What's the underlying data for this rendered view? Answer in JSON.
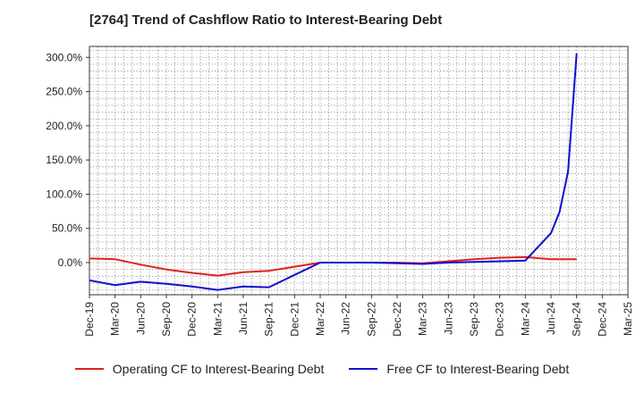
{
  "chart_data": {
    "type": "line",
    "title": "[2764]  Trend of Cashflow Ratio to Interest-Bearing Debt",
    "xlabel": "",
    "ylabel": "",
    "x_ticks": [
      "Dec-19",
      "Mar-20",
      "Jun-20",
      "Sep-20",
      "Dec-20",
      "Mar-21",
      "Jun-21",
      "Sep-21",
      "Dec-21",
      "Mar-22",
      "Jun-22",
      "Sep-22",
      "Dec-22",
      "Mar-23",
      "Jun-23",
      "Sep-23",
      "Dec-23",
      "Mar-24",
      "Jun-24",
      "Sep-24",
      "Dec-24",
      "Mar-25"
    ],
    "y_ticks": [
      "300.0%",
      "250.0%",
      "200.0%",
      "150.0%",
      "100.0%",
      "50.0%",
      "0.0%"
    ],
    "ylim": [
      -47,
      316
    ],
    "grid": true,
    "legend_position": "bottom",
    "series": [
      {
        "name": "Operating CF to Interest-Bearing Debt",
        "color": "#e02020",
        "x": [
          "Dec-19",
          "Mar-20",
          "Jun-20",
          "Sep-20",
          "Dec-20",
          "Mar-21",
          "Jun-21",
          "Sep-21",
          "Dec-21",
          "Mar-22",
          "Jun-22",
          "Sep-22",
          "Dec-22",
          "Mar-23",
          "Jun-23",
          "Sep-23",
          "Dec-23",
          "Mar-24",
          "Jun-24",
          "Sep-24"
        ],
        "values": [
          6,
          5,
          -3,
          -10,
          -15,
          -19,
          -14,
          -12,
          -6,
          0,
          0,
          0,
          0,
          -1,
          2,
          5,
          7,
          8,
          5,
          5
        ]
      },
      {
        "name": "Free CF to Interest-Bearing Debt",
        "color": "#1010d0",
        "x": [
          "Dec-19",
          "Mar-20",
          "Jun-20",
          "Sep-20",
          "Dec-20",
          "Mar-21",
          "Jun-21",
          "Sep-21",
          "Dec-21",
          "Mar-22",
          "Jun-22",
          "Sep-22",
          "Dec-22",
          "Mar-23",
          "Jun-23",
          "Sep-23",
          "Dec-23",
          "Mar-24",
          "Jun-24",
          "Jul-24",
          "Aug-24",
          "Sep-24"
        ],
        "values": [
          -26,
          -33,
          -28,
          -31,
          -35,
          -40,
          -35,
          -36,
          -18,
          0,
          0,
          0,
          -1,
          -2,
          0,
          1,
          2,
          3,
          43,
          74,
          133,
          306
        ]
      }
    ]
  }
}
